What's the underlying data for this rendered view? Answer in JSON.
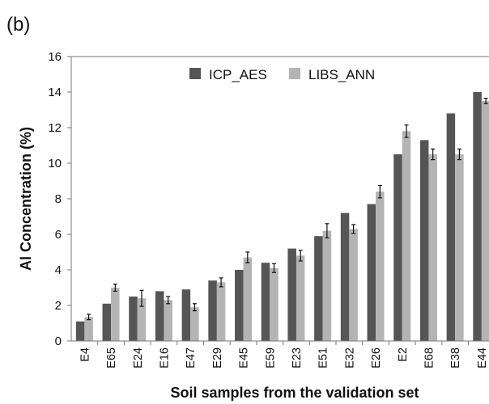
{
  "panel_label": "(b)",
  "chart_data": {
    "type": "bar",
    "xlabel": "Soil samples from the validation set",
    "ylabel": "Al Concentration (%)",
    "ylim": [
      0,
      16
    ],
    "yticks": [
      "0",
      "2",
      "4",
      "6",
      "8",
      "10",
      "12",
      "14",
      "16"
    ],
    "grid": false,
    "legend": "top-center",
    "categories": [
      "E4",
      "E65",
      "E24",
      "E16",
      "E47",
      "E29",
      "E45",
      "E59",
      "E23",
      "E51",
      "E32",
      "E26",
      "E2",
      "E68",
      "E38",
      "E44"
    ],
    "series": [
      {
        "name": "ICP_AES",
        "color": "#555555",
        "values": [
          1.1,
          2.1,
          2.5,
          2.8,
          2.9,
          3.4,
          4.0,
          4.4,
          5.2,
          5.9,
          7.2,
          7.7,
          10.5,
          11.3,
          12.8,
          14.0
        ]
      },
      {
        "name": "LIBS_ANN",
        "color": "#b4b4b4",
        "values": [
          1.35,
          3.0,
          2.4,
          2.3,
          1.9,
          3.3,
          4.7,
          4.1,
          4.8,
          6.2,
          6.3,
          8.4,
          11.8,
          10.5,
          10.5,
          13.5
        ],
        "errors": [
          0.15,
          0.2,
          0.45,
          0.2,
          0.2,
          0.25,
          0.3,
          0.25,
          0.3,
          0.4,
          0.25,
          0.35,
          0.35,
          0.3,
          0.3,
          0.15
        ]
      }
    ]
  }
}
